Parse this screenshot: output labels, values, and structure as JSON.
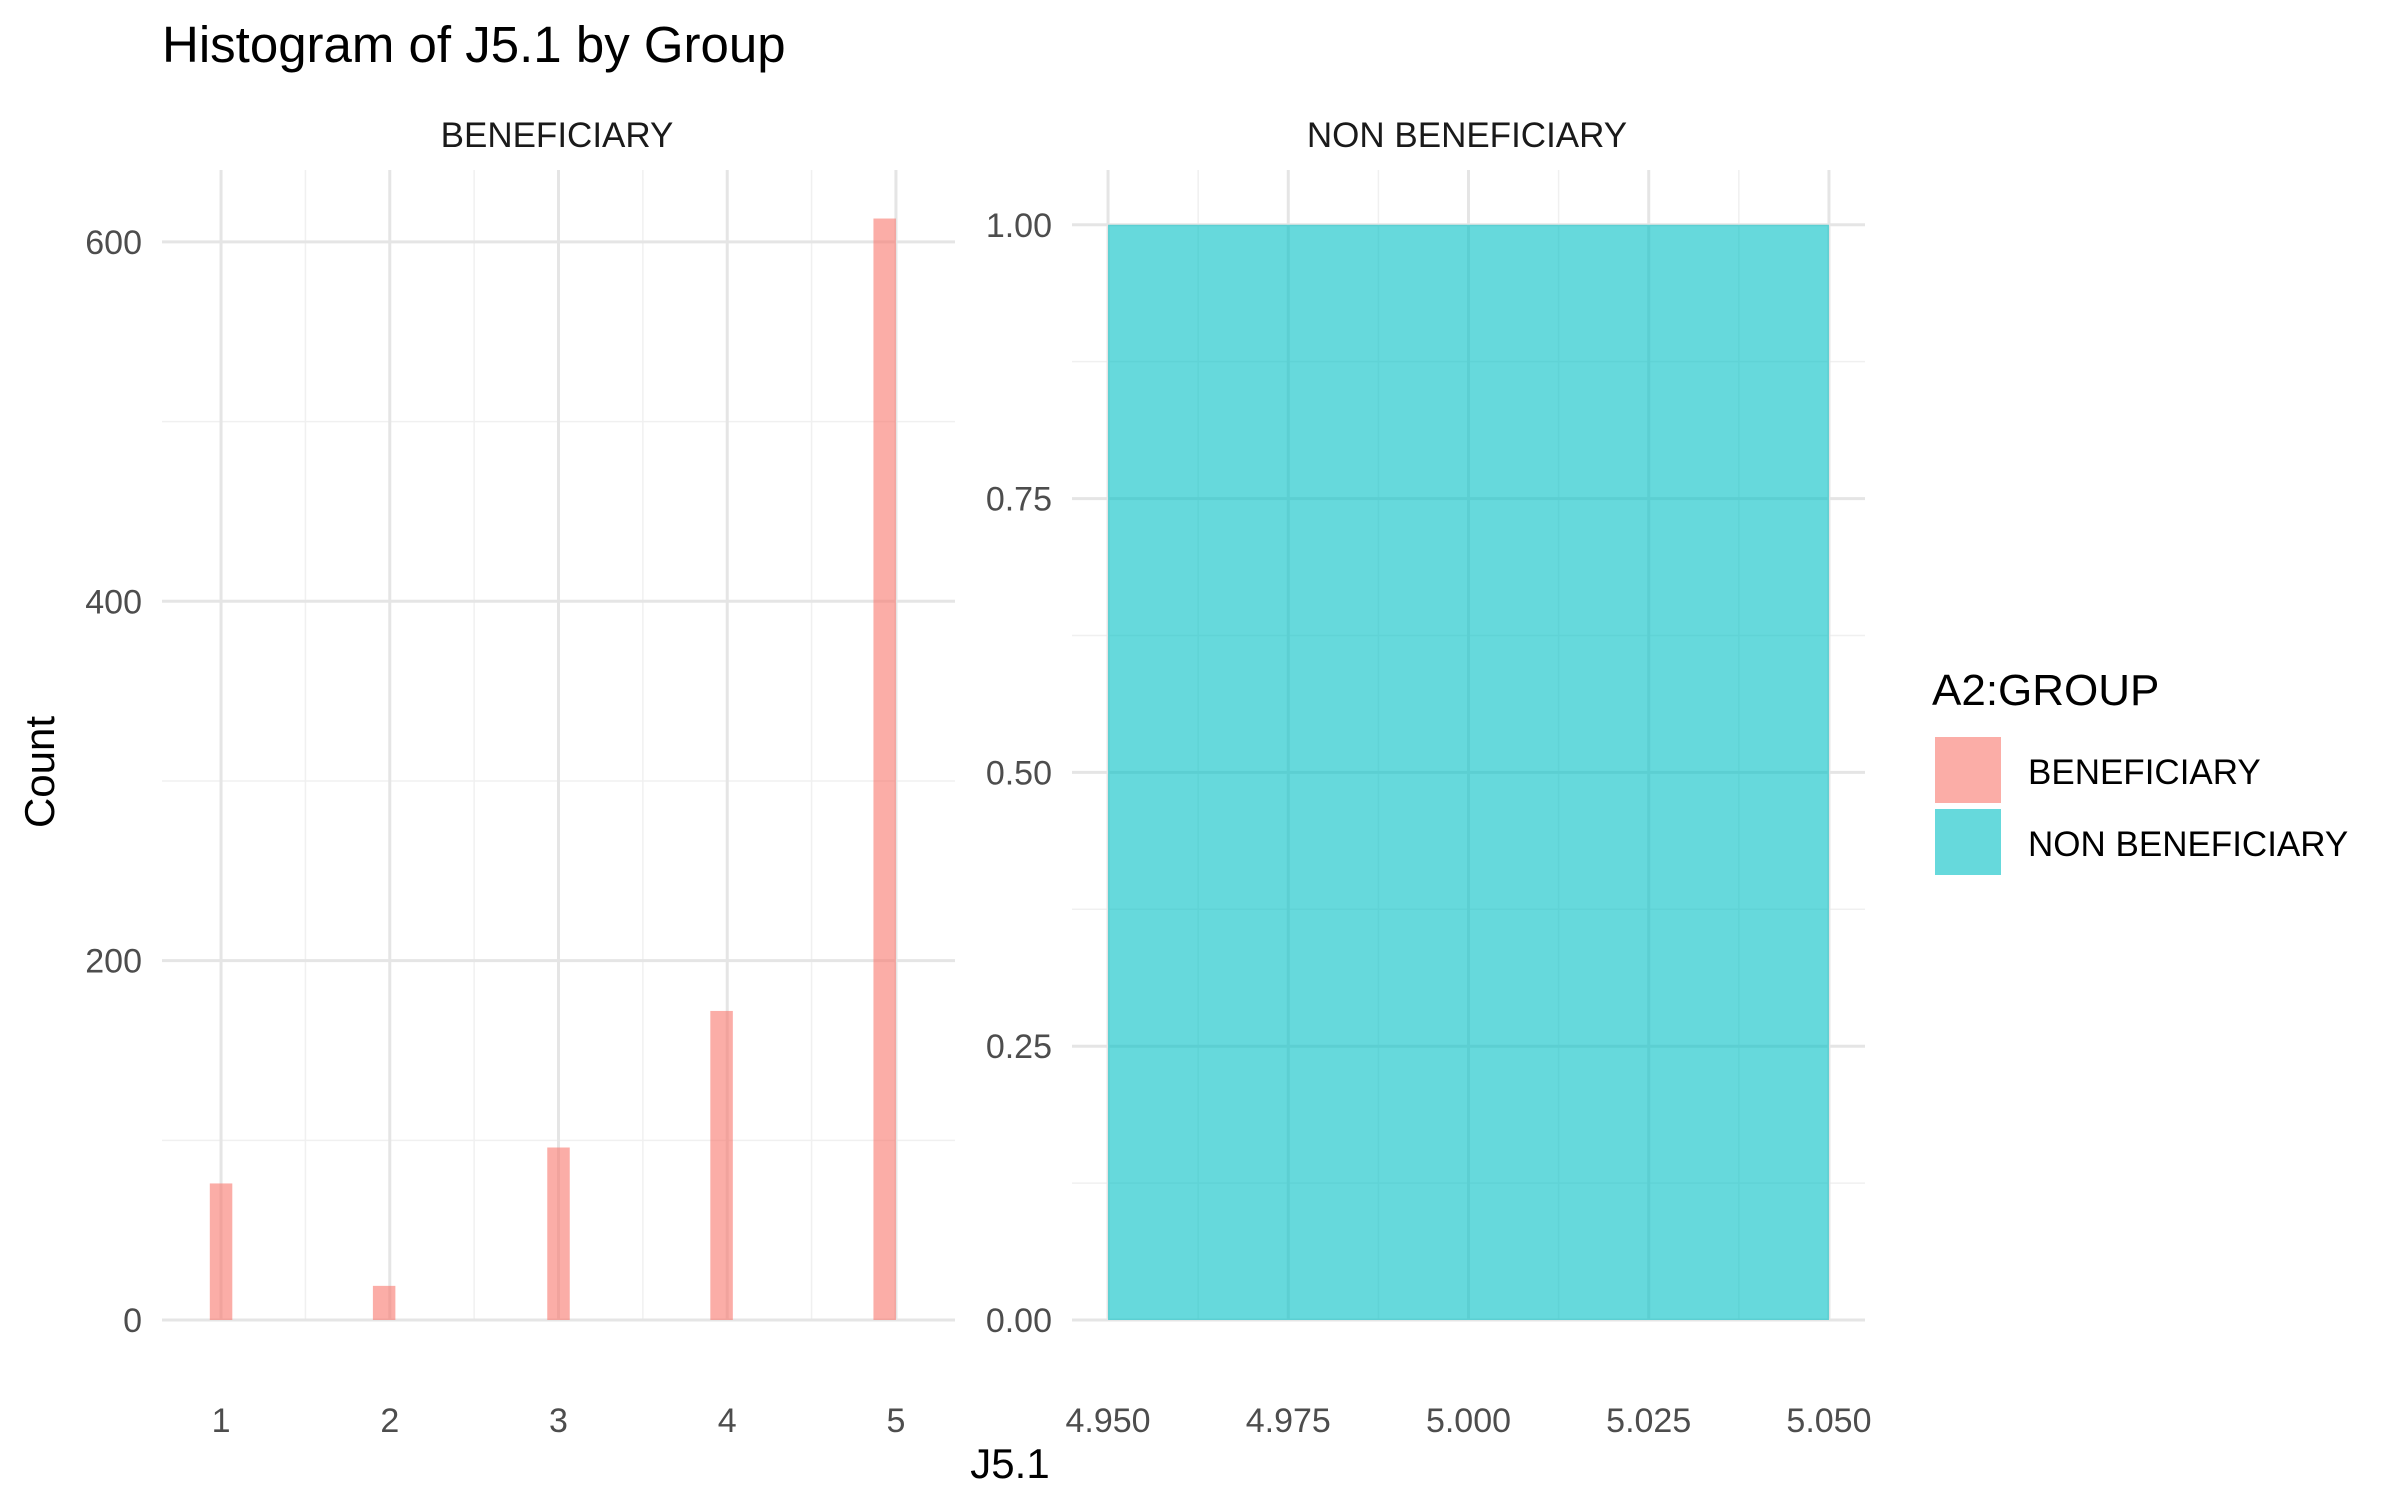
{
  "chart_data": {
    "type": "bar",
    "title": "Histogram of J5.1 by Group",
    "xlabel": "J5.1",
    "ylabel": "Count",
    "grid": true,
    "legend": {
      "title": "A2:GROUP",
      "placement": "right",
      "entries": [
        {
          "label": "BENEFICIARY",
          "color": "#F8766D"
        },
        {
          "label": "NON BENEFICIARY",
          "color": "#00BFC4"
        }
      ]
    },
    "facets": [
      {
        "name": "BENEFICIARY",
        "color": "#F8766D",
        "xlim": [
          0.65,
          5.35
        ],
        "ylim": [
          0,
          640
        ],
        "x_ticks": [
          "1",
          "2",
          "3",
          "4",
          "5"
        ],
        "x_tick_values": [
          1,
          2,
          3,
          4,
          5
        ],
        "y_ticks": [
          "0",
          "200",
          "400",
          "600"
        ],
        "y_tick_values": [
          0,
          200,
          400,
          600
        ],
        "bins": [
          {
            "x": 1.0,
            "count": 76
          },
          {
            "x": 1.9666,
            "count": 19
          },
          {
            "x": 3.0,
            "count": 96
          },
          {
            "x": 3.9666,
            "count": 172
          },
          {
            "x": 4.9333,
            "count": 613
          }
        ],
        "bin_width": 0.1333
      },
      {
        "name": "NON BENEFICIARY",
        "color": "#00BFC4",
        "xlim": [
          4.945,
          5.055
        ],
        "ylim": [
          0,
          1.05
        ],
        "x_ticks": [
          "4.950",
          "4.975",
          "5.000",
          "5.025",
          "5.050"
        ],
        "x_tick_values": [
          4.95,
          4.975,
          5.0,
          5.025,
          5.05
        ],
        "y_ticks": [
          "0.00",
          "0.25",
          "0.50",
          "0.75",
          "1.00"
        ],
        "y_tick_values": [
          0,
          0.25,
          0.5,
          0.75,
          1.0
        ],
        "bins": [
          {
            "x0": 4.95,
            "x1": 5.05,
            "count": 1
          }
        ]
      }
    ]
  }
}
